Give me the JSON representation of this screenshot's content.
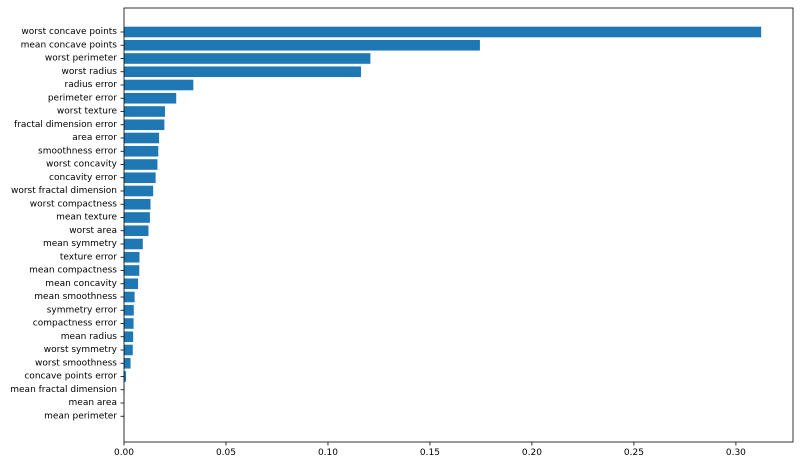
{
  "chart_data": {
    "type": "bar",
    "orientation": "horizontal",
    "title": "",
    "xlabel": "",
    "ylabel": "",
    "xlim": [
      0,
      0.328
    ],
    "xticks": [
      0.0,
      0.05,
      0.1,
      0.15,
      0.2,
      0.25,
      0.3
    ],
    "xtick_labels": [
      "0.00",
      "0.05",
      "0.10",
      "0.15",
      "0.20",
      "0.25",
      "0.30"
    ],
    "grid": false,
    "bar_color": "#1f77b4",
    "categories": [
      "worst concave points",
      "mean concave points",
      "worst perimeter",
      "worst radius",
      "radius error",
      "perimeter error",
      "worst texture",
      "fractal dimension error",
      "area error",
      "smoothness error",
      "worst concavity",
      "concavity error",
      "worst fractal dimension",
      "worst compactness",
      "mean texture",
      "worst area",
      "mean symmetry",
      "texture error",
      "mean compactness",
      "mean concavity",
      "mean smoothness",
      "symmetry error",
      "compactness error",
      "mean radius",
      "worst symmetry",
      "worst smoothness",
      "concave points error",
      "mean fractal dimension",
      "mean area",
      "mean perimeter"
    ],
    "values": [
      0.3124,
      0.1745,
      0.1208,
      0.1162,
      0.034,
      0.0256,
      0.0201,
      0.0198,
      0.0172,
      0.0168,
      0.0164,
      0.0155,
      0.0143,
      0.013,
      0.0127,
      0.012,
      0.0092,
      0.0076,
      0.0075,
      0.0069,
      0.0052,
      0.0048,
      0.0047,
      0.0045,
      0.0043,
      0.0032,
      0.001,
      0.0002,
      0.0001,
      0.0001
    ]
  }
}
